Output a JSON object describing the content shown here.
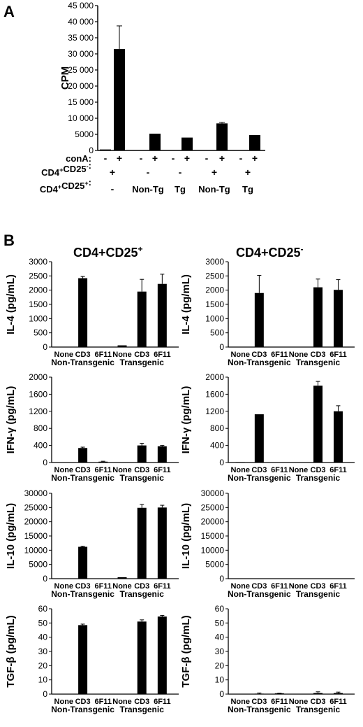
{
  "panel_a": {
    "label": "A",
    "chart_data": {
      "type": "bar",
      "ylabel": "CPM",
      "ylim": [
        0,
        45000
      ],
      "yticks": [
        "0",
        "5000",
        "10 000",
        "15 000",
        "20 000",
        "25 000",
        "30 000",
        "35 000",
        "40 000",
        "45 000"
      ],
      "values": [
        300,
        31500,
        0,
        5200,
        0,
        4000,
        0,
        8400,
        0,
        4800
      ],
      "errors": [
        0,
        7200,
        0,
        0,
        0,
        0,
        0,
        300,
        0,
        0
      ],
      "rows": [
        {
          "label": "conA:",
          "cells": [
            "-",
            "+",
            "-",
            "+",
            "-",
            "+",
            "-",
            "+",
            "-",
            "+"
          ]
        },
        {
          "label": "CD4⁺CD25⁻:",
          "cells": [
            "+",
            "-",
            "-",
            "+",
            "+"
          ]
        },
        {
          "label": "CD4⁺CD25⁺:",
          "cells": [
            "-",
            "Non-Tg",
            "Tg",
            "Non-Tg",
            "Tg"
          ]
        }
      ]
    }
  },
  "panel_b": {
    "label": "B",
    "column_titles": [
      "CD4+CD25+",
      "CD4+CD25-"
    ],
    "categories": [
      "None",
      "CD3",
      "6F11",
      "None",
      "CD3",
      "6F11"
    ],
    "groups": [
      "Non-Transgenic",
      "Transgenic"
    ],
    "chart_data": [
      {
        "type": "bar",
        "ylabel": "IL-4 (pg/mL)",
        "ylim": [
          0,
          3000
        ],
        "yticks": [
          "0",
          "500",
          "1000",
          "1500",
          "2000",
          "2500",
          "3000"
        ],
        "values": [
          0,
          2420,
          0,
          60,
          1950,
          2220
        ],
        "errors": [
          0,
          60,
          0,
          0,
          430,
          340
        ]
      },
      {
        "type": "bar",
        "ylabel": "IL-4 (pg/mL)",
        "ylim": [
          0,
          3000
        ],
        "yticks": [
          "0",
          "500",
          "1000",
          "1500",
          "2000",
          "2500",
          "3000"
        ],
        "values": [
          0,
          1900,
          0,
          0,
          2100,
          2010
        ],
        "errors": [
          0,
          620,
          0,
          0,
          290,
          360
        ]
      },
      {
        "type": "bar",
        "ylabel": "IFN-γ (pg/mL)",
        "ylim": [
          0,
          2000
        ],
        "yticks": [
          "0",
          "400",
          "800",
          "1200",
          "1600",
          "2000"
        ],
        "values": [
          0,
          340,
          20,
          0,
          400,
          380
        ],
        "errors": [
          0,
          20,
          10,
          0,
          50,
          20
        ]
      },
      {
        "type": "bar",
        "ylabel": "IFN-γ (pg/mL)",
        "ylim": [
          0,
          2000
        ],
        "yticks": [
          "0",
          "400",
          "800",
          "1200",
          "1600",
          "2000"
        ],
        "values": [
          10,
          1130,
          0,
          0,
          1800,
          1200
        ],
        "errors": [
          0,
          0,
          0,
          0,
          100,
          130
        ]
      },
      {
        "type": "bar",
        "ylabel": "IL-10 (pg/mL)",
        "ylim": [
          0,
          30000
        ],
        "yticks": [
          "0",
          "5000",
          "10000",
          "15000",
          "20000",
          "25000",
          "30000"
        ],
        "values": [
          0,
          11200,
          0,
          500,
          24900,
          25000
        ],
        "errors": [
          0,
          200,
          0,
          0,
          1200,
          800
        ]
      },
      {
        "type": "bar",
        "ylabel": "IL-10 (pg/mL)",
        "ylim": [
          0,
          30000
        ],
        "yticks": [
          "0",
          "5000",
          "10000",
          "15000",
          "20000",
          "25000",
          "30000"
        ],
        "values": [
          0,
          0,
          0,
          0,
          0,
          0
        ],
        "errors": [
          0,
          0,
          0,
          0,
          0,
          0
        ]
      },
      {
        "type": "bar",
        "ylabel": "TGF-β (pg/mL)",
        "ylim": [
          0,
          60
        ],
        "yticks": [
          "0",
          "10",
          "20",
          "30",
          "40",
          "50",
          "60"
        ],
        "values": [
          0,
          48.5,
          0,
          0,
          51,
          54.5
        ],
        "errors": [
          0,
          0.7,
          0,
          0,
          1.2,
          0.8
        ]
      },
      {
        "type": "bar",
        "ylabel": "TGF-β (pg/mL)",
        "ylim": [
          0,
          60
        ],
        "yticks": [
          "0",
          "10",
          "20",
          "30",
          "40",
          "50",
          "60"
        ],
        "values": [
          0,
          0.3,
          0.6,
          0,
          0.8,
          0.8
        ],
        "errors": [
          0,
          0.5,
          0.1,
          0,
          0.8,
          0.6
        ]
      }
    ]
  }
}
